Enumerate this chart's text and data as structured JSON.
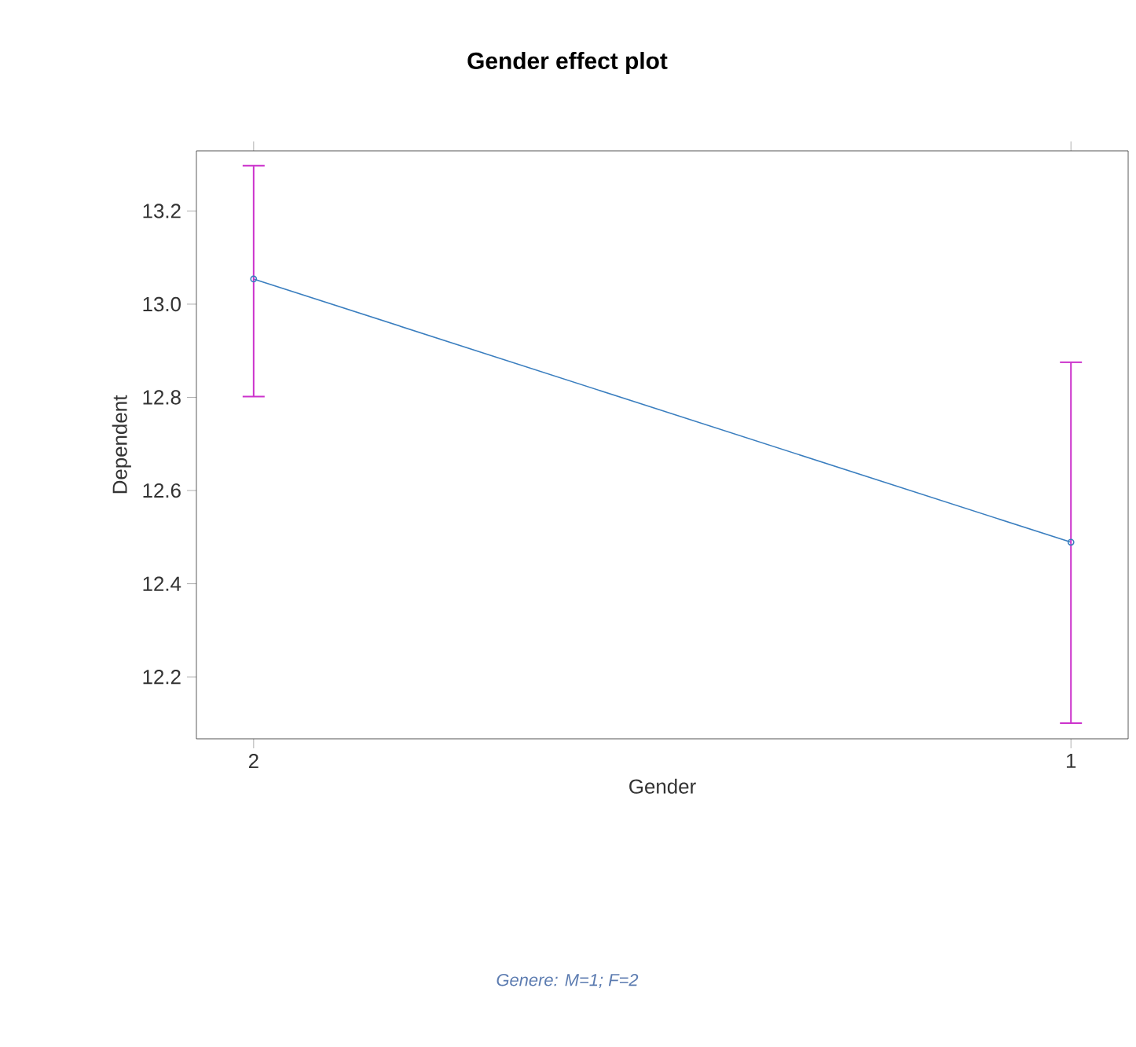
{
  "chart_data": {
    "type": "line",
    "title": "Gender effect plot",
    "xlabel": "Gender",
    "ylabel": "Dependent",
    "categories": [
      "2",
      "1"
    ],
    "series": [
      {
        "color": "#3a7ebf",
        "values": [
          13.054,
          12.489
        ],
        "errors": [
          [
            12.8,
            13.299
          ],
          [
            12.099,
            12.877
          ]
        ]
      }
    ],
    "ylim": [
      12.067,
      13.329
    ],
    "yticks": [
      12.2,
      12.4,
      12.6,
      12.8,
      {
        "value": 13.0,
        "label": "13.0"
      },
      13.2
    ],
    "marker": "circle",
    "line_style": "solid",
    "annotations": [
      "Genere: M=1; F=2"
    ]
  }
}
